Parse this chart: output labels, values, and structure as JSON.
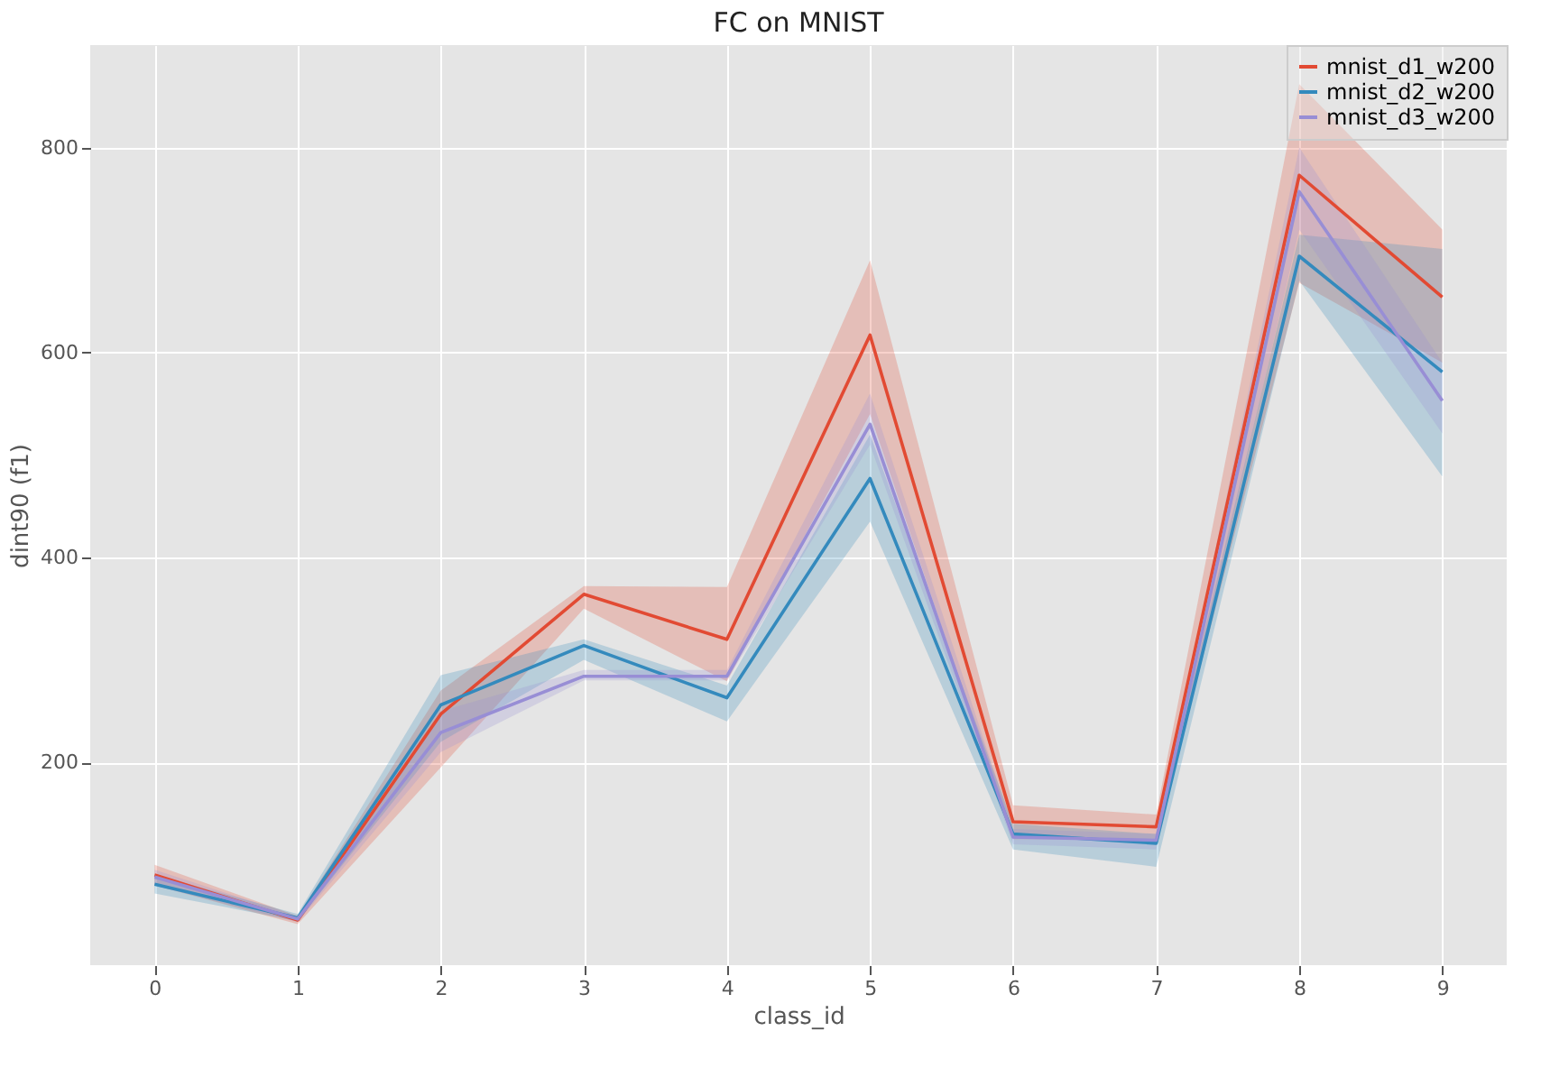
{
  "chart_data": {
    "type": "line",
    "title": "FC on MNIST",
    "xlabel": "class_id",
    "ylabel": "dint90 (f1)",
    "x": [
      0,
      1,
      2,
      3,
      4,
      5,
      6,
      7,
      8,
      9
    ],
    "xlim": [
      -0.45,
      9.45
    ],
    "xticks": [
      0,
      1,
      2,
      3,
      4,
      5,
      6,
      7,
      8,
      9
    ],
    "ylim": [
      2,
      900
    ],
    "yticks": [
      200,
      400,
      600,
      800
    ],
    "grid": true,
    "legend": "top right",
    "marker": "none",
    "line_style": "solid",
    "series": [
      {
        "name": "mnist_d1_w200",
        "color": "#e24a33",
        "values": [
          90,
          46,
          247,
          364,
          320,
          617,
          142,
          137,
          773,
          654
        ],
        "lower": [
          80,
          42,
          195,
          350,
          279,
          540,
          125,
          125,
          668,
          590
        ],
        "upper": [
          100,
          50,
          270,
          372,
          371,
          690,
          158,
          149,
          862,
          720
        ]
      },
      {
        "name": "mnist_d2_w200",
        "color": "#348abd",
        "values": [
          81,
          48,
          256,
          314,
          263,
          477,
          130,
          121,
          694,
          581
        ],
        "lower": [
          72,
          45,
          220,
          300,
          240,
          435,
          115,
          98,
          670,
          479
        ],
        "upper": [
          90,
          52,
          285,
          320,
          275,
          520,
          140,
          130,
          715,
          701
        ]
      },
      {
        "name": "mnist_d3_w200",
        "color": "#988ed5",
        "values": [
          88,
          47,
          229,
          284,
          284,
          530,
          127,
          124,
          757,
          553
        ],
        "lower": [
          80,
          44,
          210,
          280,
          280,
          510,
          120,
          115,
          720,
          521
        ],
        "upper": [
          95,
          50,
          250,
          290,
          290,
          560,
          135,
          130,
          800,
          590
        ]
      }
    ]
  }
}
